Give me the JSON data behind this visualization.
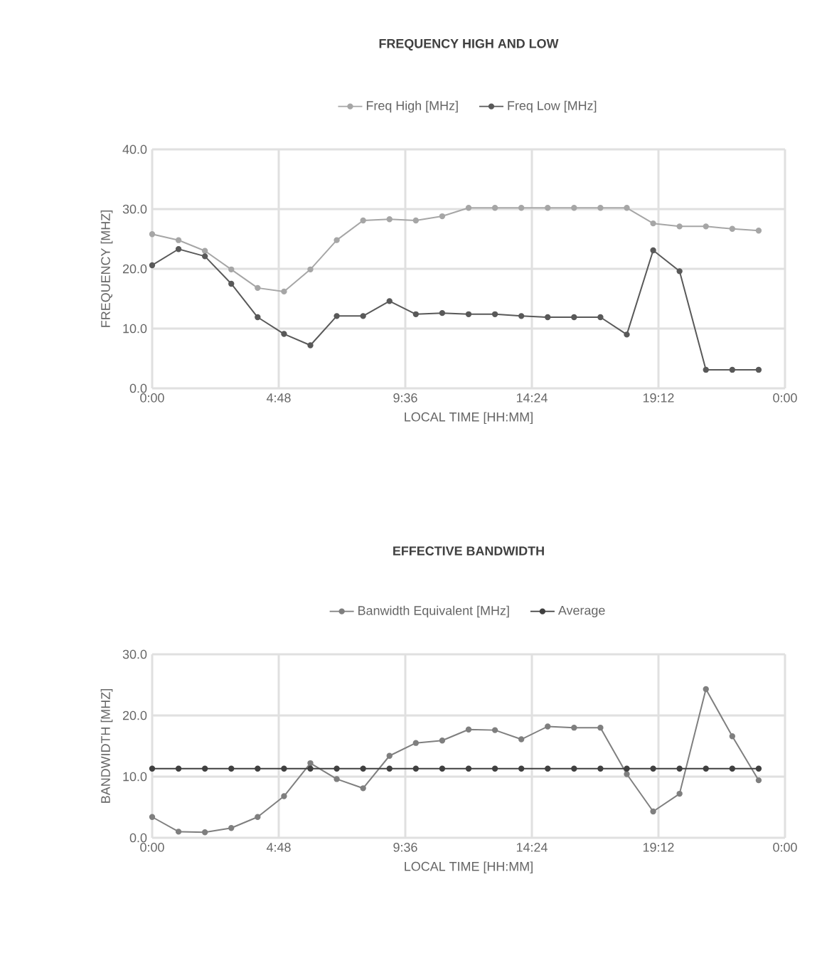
{
  "chart_data": [
    {
      "type": "line",
      "title": "FREQUENCY HIGH AND LOW",
      "xlabel": "LOCAL TIME [HH:MM]",
      "ylabel": "FREQUENCY [MHZ]",
      "x": [
        0,
        1,
        2,
        3,
        4,
        5,
        6,
        7,
        8,
        9,
        10,
        11,
        12,
        13,
        14,
        15,
        16,
        17,
        18,
        19,
        20,
        21,
        22,
        23
      ],
      "series": [
        {
          "name": "Freq High [MHz]",
          "color": "#a6a6a6",
          "values": [
            25.8,
            24.8,
            23.0,
            19.9,
            16.8,
            16.2,
            19.9,
            24.8,
            28.1,
            28.3,
            28.1,
            28.8,
            30.2,
            30.2,
            30.2,
            30.2,
            30.2,
            30.2,
            30.2,
            27.6,
            27.1,
            27.1,
            26.7,
            26.4
          ]
        },
        {
          "name": "Freq Low [MHz]",
          "color": "#595959",
          "values": [
            20.6,
            23.3,
            22.1,
            17.5,
            11.9,
            9.1,
            7.2,
            12.1,
            12.1,
            14.6,
            12.4,
            12.6,
            12.4,
            12.4,
            12.1,
            11.9,
            11.9,
            11.9,
            9.0,
            23.1,
            19.6,
            3.1,
            3.1,
            3.1
          ]
        }
      ],
      "xlim": [
        0,
        24
      ],
      "xticks": [
        {
          "value": 0,
          "label": "0:00"
        },
        {
          "value": 4.8,
          "label": "4:48"
        },
        {
          "value": 9.6,
          "label": "9:36"
        },
        {
          "value": 14.4,
          "label": "14:24"
        },
        {
          "value": 19.2,
          "label": "19:12"
        },
        {
          "value": 24,
          "label": "0:00"
        }
      ],
      "ylim": [
        0,
        40
      ],
      "yticks": [
        {
          "value": 0,
          "label": "0.0"
        },
        {
          "value": 10,
          "label": "10.0"
        },
        {
          "value": 20,
          "label": "20.0"
        },
        {
          "value": 30,
          "label": "30.0"
        },
        {
          "value": 40,
          "label": "40.0"
        }
      ],
      "grid": true,
      "legend": "top",
      "marker": "circle",
      "line_style": "solid"
    },
    {
      "type": "line",
      "title": "EFFECTIVE BANDWIDTH",
      "xlabel": "LOCAL TIME [HH:MM]",
      "ylabel": "BANDWIDTH [MHZ]",
      "x": [
        0,
        1,
        2,
        3,
        4,
        5,
        6,
        7,
        8,
        9,
        10,
        11,
        12,
        13,
        14,
        15,
        16,
        17,
        18,
        19,
        20,
        21,
        22,
        23
      ],
      "series": [
        {
          "name": "Banwidth Equivalent [MHz]",
          "color": "#7f7f7f",
          "values": [
            3.4,
            1.0,
            0.9,
            1.6,
            3.4,
            6.8,
            12.2,
            9.6,
            8.1,
            13.4,
            15.5,
            15.9,
            17.7,
            17.6,
            16.1,
            18.2,
            18.0,
            18.0,
            10.4,
            4.3,
            7.2,
            24.3,
            16.6,
            9.4
          ]
        },
        {
          "name": "Average",
          "color": "#404040",
          "values": [
            11.3,
            11.3,
            11.3,
            11.3,
            11.3,
            11.3,
            11.3,
            11.3,
            11.3,
            11.3,
            11.3,
            11.3,
            11.3,
            11.3,
            11.3,
            11.3,
            11.3,
            11.3,
            11.3,
            11.3,
            11.3,
            11.3,
            11.3,
            11.3
          ]
        }
      ],
      "xlim": [
        0,
        24
      ],
      "xticks": [
        {
          "value": 0,
          "label": "0:00"
        },
        {
          "value": 4.8,
          "label": "4:48"
        },
        {
          "value": 9.6,
          "label": "9:36"
        },
        {
          "value": 14.4,
          "label": "14:24"
        },
        {
          "value": 19.2,
          "label": "19:12"
        },
        {
          "value": 24,
          "label": "0:00"
        }
      ],
      "ylim": [
        0,
        30
      ],
      "yticks": [
        {
          "value": 0,
          "label": "0.0"
        },
        {
          "value": 10,
          "label": "10.0"
        },
        {
          "value": 20,
          "label": "20.0"
        },
        {
          "value": 30,
          "label": "30.0"
        }
      ],
      "grid": true,
      "legend": "top",
      "marker": "circle",
      "line_style": "solid"
    }
  ]
}
